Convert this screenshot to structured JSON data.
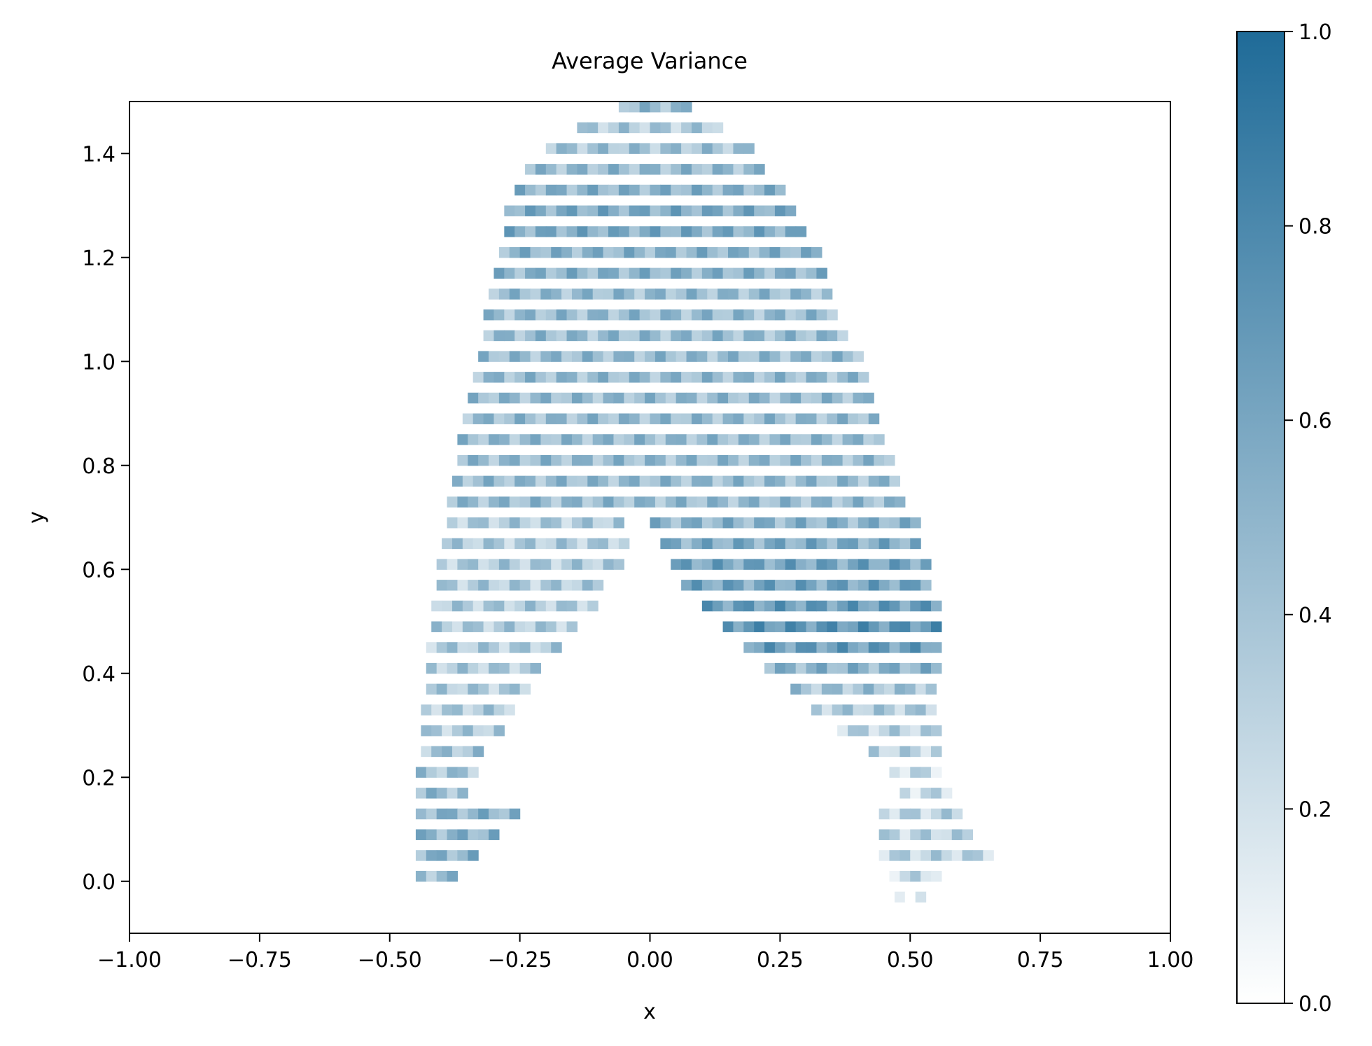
{
  "chart_data": {
    "type": "heatmap",
    "title": "Average Variance",
    "xlabel": "x",
    "ylabel": "y",
    "xlim": [
      -1.0,
      1.0
    ],
    "ylim": [
      -0.1,
      1.5
    ],
    "x_ticks": [
      -1.0,
      -0.75,
      -0.5,
      -0.25,
      0.0,
      0.25,
      0.5,
      0.75,
      1.0
    ],
    "x_tick_labels": [
      "−1.00",
      "−0.75",
      "−0.50",
      "−0.25",
      "0.00",
      "0.25",
      "0.50",
      "0.75",
      "1.00"
    ],
    "y_ticks": [
      0.0,
      0.2,
      0.4,
      0.6,
      0.8,
      1.0,
      1.2,
      1.4
    ],
    "y_tick_labels": [
      "0.0",
      "0.2",
      "0.4",
      "0.6",
      "0.8",
      "1.0",
      "1.2",
      "1.4"
    ],
    "colorbar": {
      "range": [
        0.0,
        1.0
      ],
      "ticks": [
        0.0,
        0.2,
        0.4,
        0.6,
        0.8,
        1.0
      ],
      "tick_labels": [
        "0.0",
        "0.2",
        "0.4",
        "0.6",
        "0.8",
        "1.0"
      ],
      "color_low": "#ffffff",
      "color_high": "#1f6b98"
    },
    "grid": false,
    "cell_size": [
      0.02,
      0.02
    ],
    "rows": [
      {
        "y": 1.48,
        "cells": [
          [
            -0.06,
            0.07,
            0.45
          ]
        ]
      },
      {
        "y": 1.44,
        "cells": [
          [
            -0.14,
            0.13,
            0.35
          ]
        ]
      },
      {
        "y": 1.4,
        "cells": [
          [
            -0.2,
            0.19,
            0.4
          ]
        ]
      },
      {
        "y": 1.36,
        "cells": [
          [
            -0.24,
            0.22,
            0.45
          ]
        ]
      },
      {
        "y": 1.32,
        "cells": [
          [
            -0.26,
            0.25,
            0.5
          ]
        ]
      },
      {
        "y": 1.28,
        "cells": [
          [
            -0.28,
            0.28,
            0.55
          ]
        ]
      },
      {
        "y": 1.24,
        "cells": [
          [
            -0.28,
            0.3,
            0.55
          ]
        ]
      },
      {
        "y": 1.2,
        "cells": [
          [
            -0.29,
            0.32,
            0.5
          ]
        ]
      },
      {
        "y": 1.16,
        "cells": [
          [
            -0.3,
            0.34,
            0.5
          ]
        ]
      },
      {
        "y": 1.12,
        "cells": [
          [
            -0.31,
            0.35,
            0.45
          ]
        ]
      },
      {
        "y": 1.08,
        "cells": [
          [
            -0.32,
            0.36,
            0.45
          ]
        ]
      },
      {
        "y": 1.04,
        "cells": [
          [
            -0.32,
            0.38,
            0.45
          ]
        ]
      },
      {
        "y": 1.0,
        "cells": [
          [
            -0.33,
            0.4,
            0.45
          ]
        ]
      },
      {
        "y": 0.96,
        "cells": [
          [
            -0.34,
            0.41,
            0.45
          ]
        ]
      },
      {
        "y": 0.92,
        "cells": [
          [
            -0.35,
            0.42,
            0.45
          ]
        ]
      },
      {
        "y": 0.88,
        "cells": [
          [
            -0.36,
            0.44,
            0.45
          ]
        ]
      },
      {
        "y": 0.84,
        "cells": [
          [
            -0.37,
            0.45,
            0.45
          ]
        ]
      },
      {
        "y": 0.8,
        "cells": [
          [
            -0.37,
            0.47,
            0.45
          ]
        ]
      },
      {
        "y": 0.76,
        "cells": [
          [
            -0.38,
            0.48,
            0.45
          ]
        ]
      },
      {
        "y": 0.72,
        "cells": [
          [
            -0.39,
            0.49,
            0.45
          ]
        ]
      },
      {
        "y": 0.68,
        "cells": [
          [
            -0.39,
            -0.05,
            0.35
          ],
          [
            0.0,
            0.51,
            0.5
          ]
        ]
      },
      {
        "y": 0.64,
        "cells": [
          [
            -0.4,
            -0.04,
            0.35
          ],
          [
            0.02,
            0.52,
            0.55
          ]
        ]
      },
      {
        "y": 0.6,
        "cells": [
          [
            -0.41,
            -0.05,
            0.35
          ],
          [
            0.04,
            0.53,
            0.6
          ]
        ]
      },
      {
        "y": 0.56,
        "cells": [
          [
            -0.41,
            -0.08,
            0.35
          ],
          [
            0.06,
            0.54,
            0.6
          ]
        ]
      },
      {
        "y": 0.52,
        "cells": [
          [
            -0.42,
            -0.11,
            0.35
          ],
          [
            0.1,
            0.55,
            0.65
          ]
        ]
      },
      {
        "y": 0.48,
        "cells": [
          [
            -0.42,
            -0.14,
            0.35
          ],
          [
            0.14,
            0.55,
            0.7
          ]
        ]
      },
      {
        "y": 0.44,
        "cells": [
          [
            -0.43,
            -0.17,
            0.35
          ],
          [
            0.18,
            0.56,
            0.65
          ]
        ]
      },
      {
        "y": 0.4,
        "cells": [
          [
            -0.43,
            -0.2,
            0.35
          ],
          [
            0.22,
            0.56,
            0.5
          ]
        ]
      },
      {
        "y": 0.36,
        "cells": [
          [
            -0.43,
            -0.24,
            0.35
          ],
          [
            0.27,
            0.55,
            0.4
          ]
        ]
      },
      {
        "y": 0.32,
        "cells": [
          [
            -0.44,
            -0.26,
            0.35
          ],
          [
            0.31,
            0.55,
            0.35
          ]
        ]
      },
      {
        "y": 0.28,
        "cells": [
          [
            -0.44,
            -0.29,
            0.35
          ],
          [
            0.36,
            0.56,
            0.3
          ]
        ]
      },
      {
        "y": 0.24,
        "cells": [
          [
            -0.44,
            -0.32,
            0.4
          ],
          [
            0.42,
            0.56,
            0.3
          ]
        ]
      },
      {
        "y": 0.2,
        "cells": [
          [
            -0.45,
            -0.33,
            0.4
          ],
          [
            0.46,
            0.57,
            0.25
          ]
        ]
      },
      {
        "y": 0.16,
        "cells": [
          [
            -0.45,
            -0.34,
            0.45
          ],
          [
            0.48,
            0.58,
            0.25
          ]
        ]
      },
      {
        "y": 0.12,
        "cells": [
          [
            -0.45,
            -0.26,
            0.5
          ],
          [
            0.44,
            0.6,
            0.3
          ]
        ]
      },
      {
        "y": 0.08,
        "cells": [
          [
            -0.45,
            -0.28,
            0.5
          ],
          [
            0.44,
            0.62,
            0.3
          ]
        ]
      },
      {
        "y": 0.04,
        "cells": [
          [
            -0.45,
            -0.33,
            0.5
          ],
          [
            0.44,
            0.66,
            0.3
          ]
        ]
      },
      {
        "y": 0.0,
        "cells": [
          [
            -0.45,
            -0.38,
            0.45
          ],
          [
            0.46,
            0.55,
            0.25
          ]
        ]
      },
      {
        "y": -0.04,
        "cells": [
          [
            0.47,
            0.52,
            0.12
          ]
        ]
      }
    ]
  }
}
